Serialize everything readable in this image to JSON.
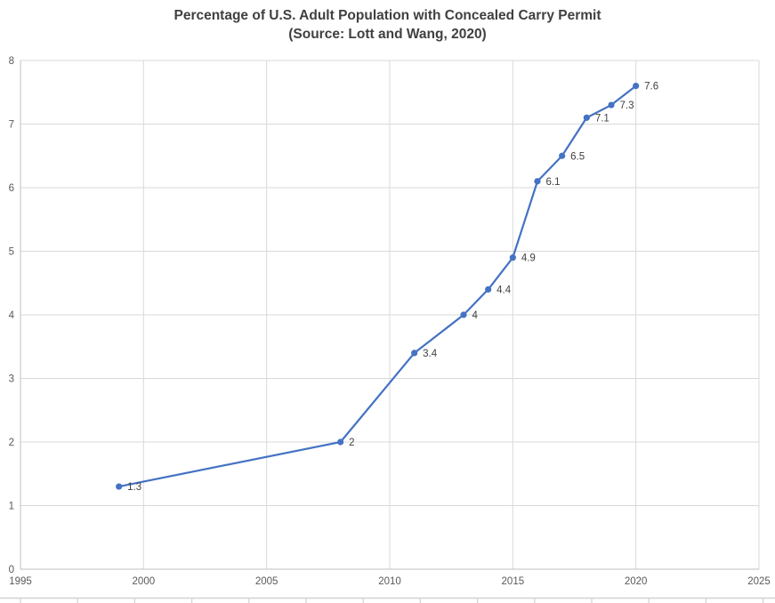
{
  "chart_data": {
    "type": "line",
    "title": "Percentage of U.S. Adult Population with Concealed Carry Permit",
    "subtitle": "(Source: Lott and Wang, 2020)",
    "x": [
      1999,
      2008,
      2011,
      2013,
      2014,
      2015,
      2016,
      2017,
      2018,
      2019,
      2020
    ],
    "y": [
      1.3,
      2.0,
      3.4,
      4.0,
      4.4,
      4.9,
      6.1,
      6.5,
      7.1,
      7.3,
      7.6
    ],
    "data_labels": [
      "1.3",
      "2",
      "3.4",
      "4",
      "4.4",
      "4.9",
      "6.1",
      "6.5",
      "7.1",
      "7.3",
      "7.6"
    ],
    "xlim": [
      1995,
      2025
    ],
    "ylim": [
      0,
      8
    ],
    "xticks": [
      1995,
      2000,
      2005,
      2010,
      2015,
      2020,
      2025
    ],
    "yticks": [
      0,
      1,
      2,
      3,
      4,
      5,
      6,
      7,
      8
    ],
    "grid": true,
    "legend": "none",
    "data_label_position": "right-of-point"
  },
  "colors": {
    "series": "#4472C4",
    "gridline": "#D9D9D9",
    "axis_line": "#BFBFBF",
    "tick_label": "#595959",
    "title": "#404040",
    "data_label": "#404040",
    "background": "#FFFFFF",
    "sheet_edge": "#D2D2D2"
  }
}
